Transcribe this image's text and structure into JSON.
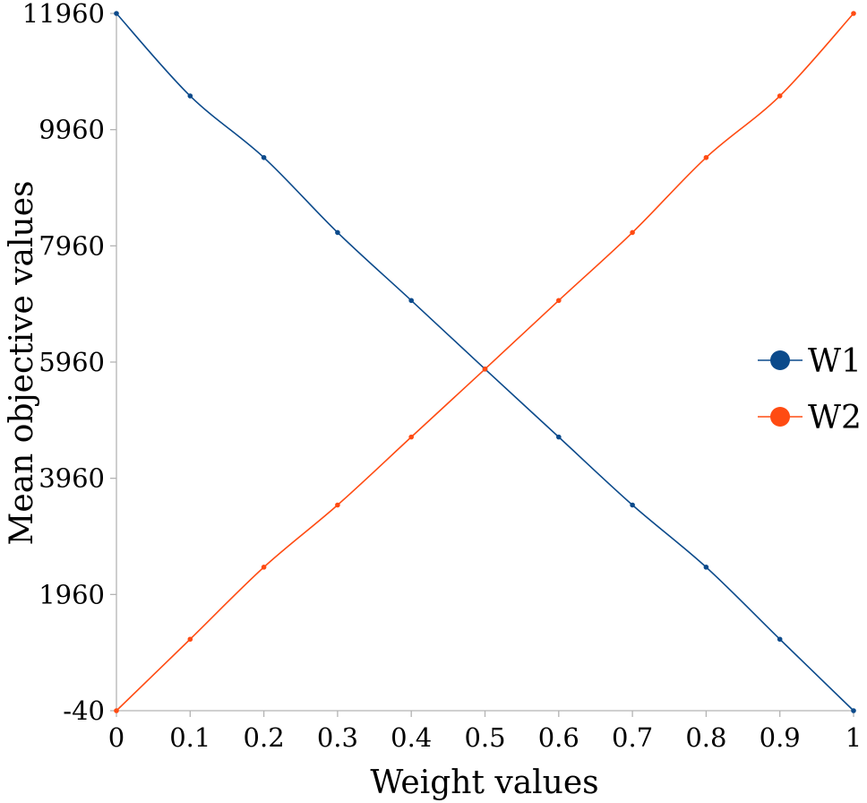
{
  "chart_data": {
    "type": "line",
    "title": "",
    "xlabel": "Weight values",
    "ylabel": "Mean objective values",
    "xlim": [
      0,
      1
    ],
    "ylim": [
      -40,
      11960
    ],
    "x_ticks": [
      0,
      0.1,
      0.2,
      0.3,
      0.4,
      0.5,
      0.6,
      0.7,
      0.8,
      0.9,
      1
    ],
    "x_tick_labels": [
      "0",
      "0.1",
      "0.2",
      "0.3",
      "0.4",
      "0.5",
      "0.6",
      "0.7",
      "0.8",
      "0.9",
      "1"
    ],
    "y_ticks": [
      -40,
      1960,
      3960,
      5960,
      7960,
      9960,
      11960
    ],
    "y_tick_labels": [
      "-40",
      "1960",
      "3960",
      "5960",
      "7960",
      "9960",
      "11960"
    ],
    "x": [
      0,
      0.1,
      0.2,
      0.3,
      0.4,
      0.5,
      0.6,
      0.7,
      0.8,
      0.9,
      1
    ],
    "series": [
      {
        "name": "W1",
        "color": "#0b4a8b",
        "values": [
          11960,
          10540,
          9480,
          8190,
          7020,
          5840,
          4670,
          3500,
          2430,
          1190,
          -40
        ]
      },
      {
        "name": "W2",
        "color": "#ff4b12",
        "values": [
          -40,
          1190,
          2430,
          3500,
          4670,
          5840,
          7020,
          8190,
          9480,
          10540,
          11960
        ]
      }
    ],
    "legend_position": "right",
    "grid": false
  }
}
